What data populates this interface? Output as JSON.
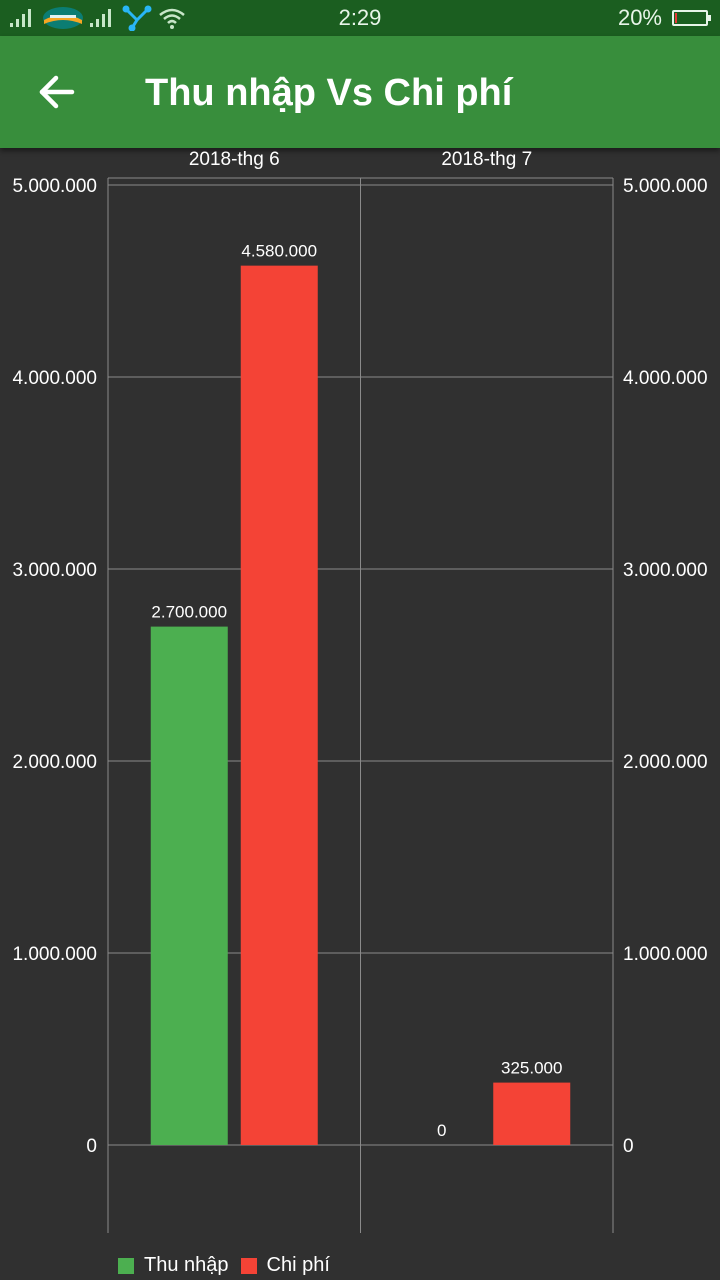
{
  "status_bar": {
    "time": "2:29",
    "battery": "20%",
    "battery_level": 0.2,
    "icons": [
      "signal-icon",
      "carrier-logo-icon",
      "signal-icon",
      "network-share-icon",
      "wifi-icon",
      "battery-icon"
    ]
  },
  "app_bar": {
    "back_icon": "arrow-left-icon",
    "title": "Thu nhập Vs Chi phí"
  },
  "colors": {
    "status_bar": "#1b5e20",
    "app_bar": "#388e3c",
    "background": "#303030",
    "income": "#4caf50",
    "expense": "#f44336"
  },
  "chart_data": {
    "type": "bar",
    "categories": [
      "2018-thg 6",
      "2018-thg 7"
    ],
    "series": [
      {
        "name": "Thu nhập",
        "values": [
          2700000,
          0
        ],
        "labels": [
          "2.700.000",
          "0"
        ],
        "color": "#4caf50"
      },
      {
        "name": "Chi phí",
        "values": [
          4580000,
          325000
        ],
        "labels": [
          "4.580.000",
          "325.000"
        ],
        "color": "#f44336"
      }
    ],
    "ylim": [
      0,
      5000000
    ],
    "y_ticks": [
      0,
      1000000,
      2000000,
      3000000,
      4000000,
      5000000
    ],
    "y_tick_labels": [
      "0",
      "1.000.000",
      "2.000.000",
      "3.000.000",
      "4.000.000",
      "5.000.000"
    ],
    "axis_side": "both",
    "x_labels_position": "top",
    "grid": true,
    "legend": "bottom-left",
    "title": "",
    "xlabel": "",
    "ylabel": ""
  }
}
